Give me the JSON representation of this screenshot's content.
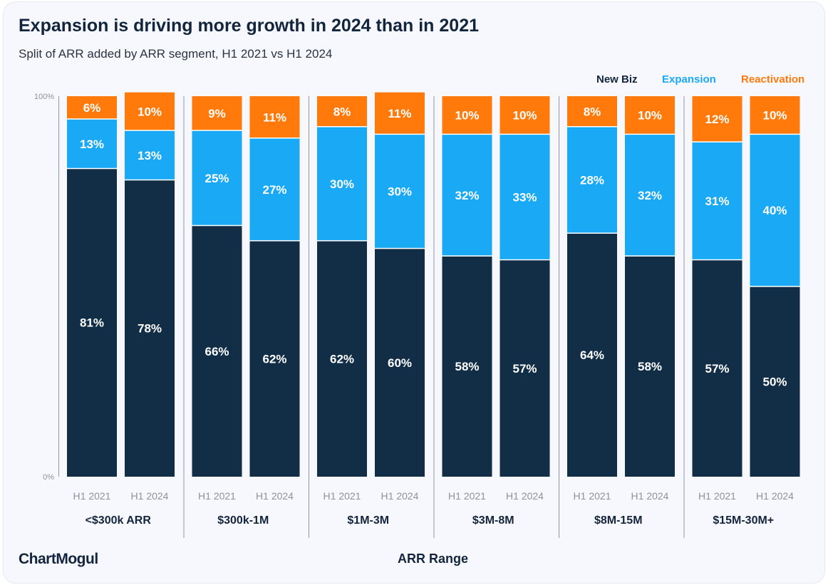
{
  "title": "Expansion is driving more growth in 2024 than in 2021",
  "subtitle": "Split of ARR added by ARR segment, H1 2021 vs H1 2024",
  "brand": "ChartMogul",
  "colors": {
    "new_biz": "#122e47",
    "expansion": "#1aa9f5",
    "reactivation": "#ff7a0a",
    "axis_text": "#8c919c",
    "group_text": "#13253d",
    "separator": "#8f96a3"
  },
  "chart_data": {
    "type": "bar",
    "stacked": true,
    "normalized_percent": true,
    "title": "Expansion is driving more growth in 2024 than in 2021",
    "subtitle": "Split of ARR added by ARR segment, H1 2021 vs H1 2024",
    "xlabel": "ARR Range",
    "ylabel": "",
    "ylim": [
      0,
      100
    ],
    "yticks": [
      "0%",
      "100%"
    ],
    "grid": false,
    "legend_position": "top-right",
    "legend": [
      "New Biz",
      "Expansion",
      "Reactivation"
    ],
    "groups": [
      "<$300k ARR",
      "$300k-1M",
      "$1M-3M",
      "$3M-8M",
      "$8M-15M",
      "$15M-30M+"
    ],
    "bar_labels": [
      "H1 2021",
      "H1 2024"
    ],
    "series": [
      {
        "name": "New Biz",
        "values": [
          [
            81,
            78
          ],
          [
            66,
            62
          ],
          [
            62,
            60
          ],
          [
            58,
            57
          ],
          [
            64,
            58
          ],
          [
            57,
            50
          ]
        ]
      },
      {
        "name": "Expansion",
        "values": [
          [
            13,
            13
          ],
          [
            25,
            27
          ],
          [
            30,
            30
          ],
          [
            32,
            33
          ],
          [
            28,
            32
          ],
          [
            31,
            40
          ]
        ]
      },
      {
        "name": "Reactivation",
        "values": [
          [
            6,
            10
          ],
          [
            9,
            11
          ],
          [
            8,
            11
          ],
          [
            10,
            10
          ],
          [
            8,
            10
          ],
          [
            12,
            10
          ]
        ]
      }
    ]
  }
}
